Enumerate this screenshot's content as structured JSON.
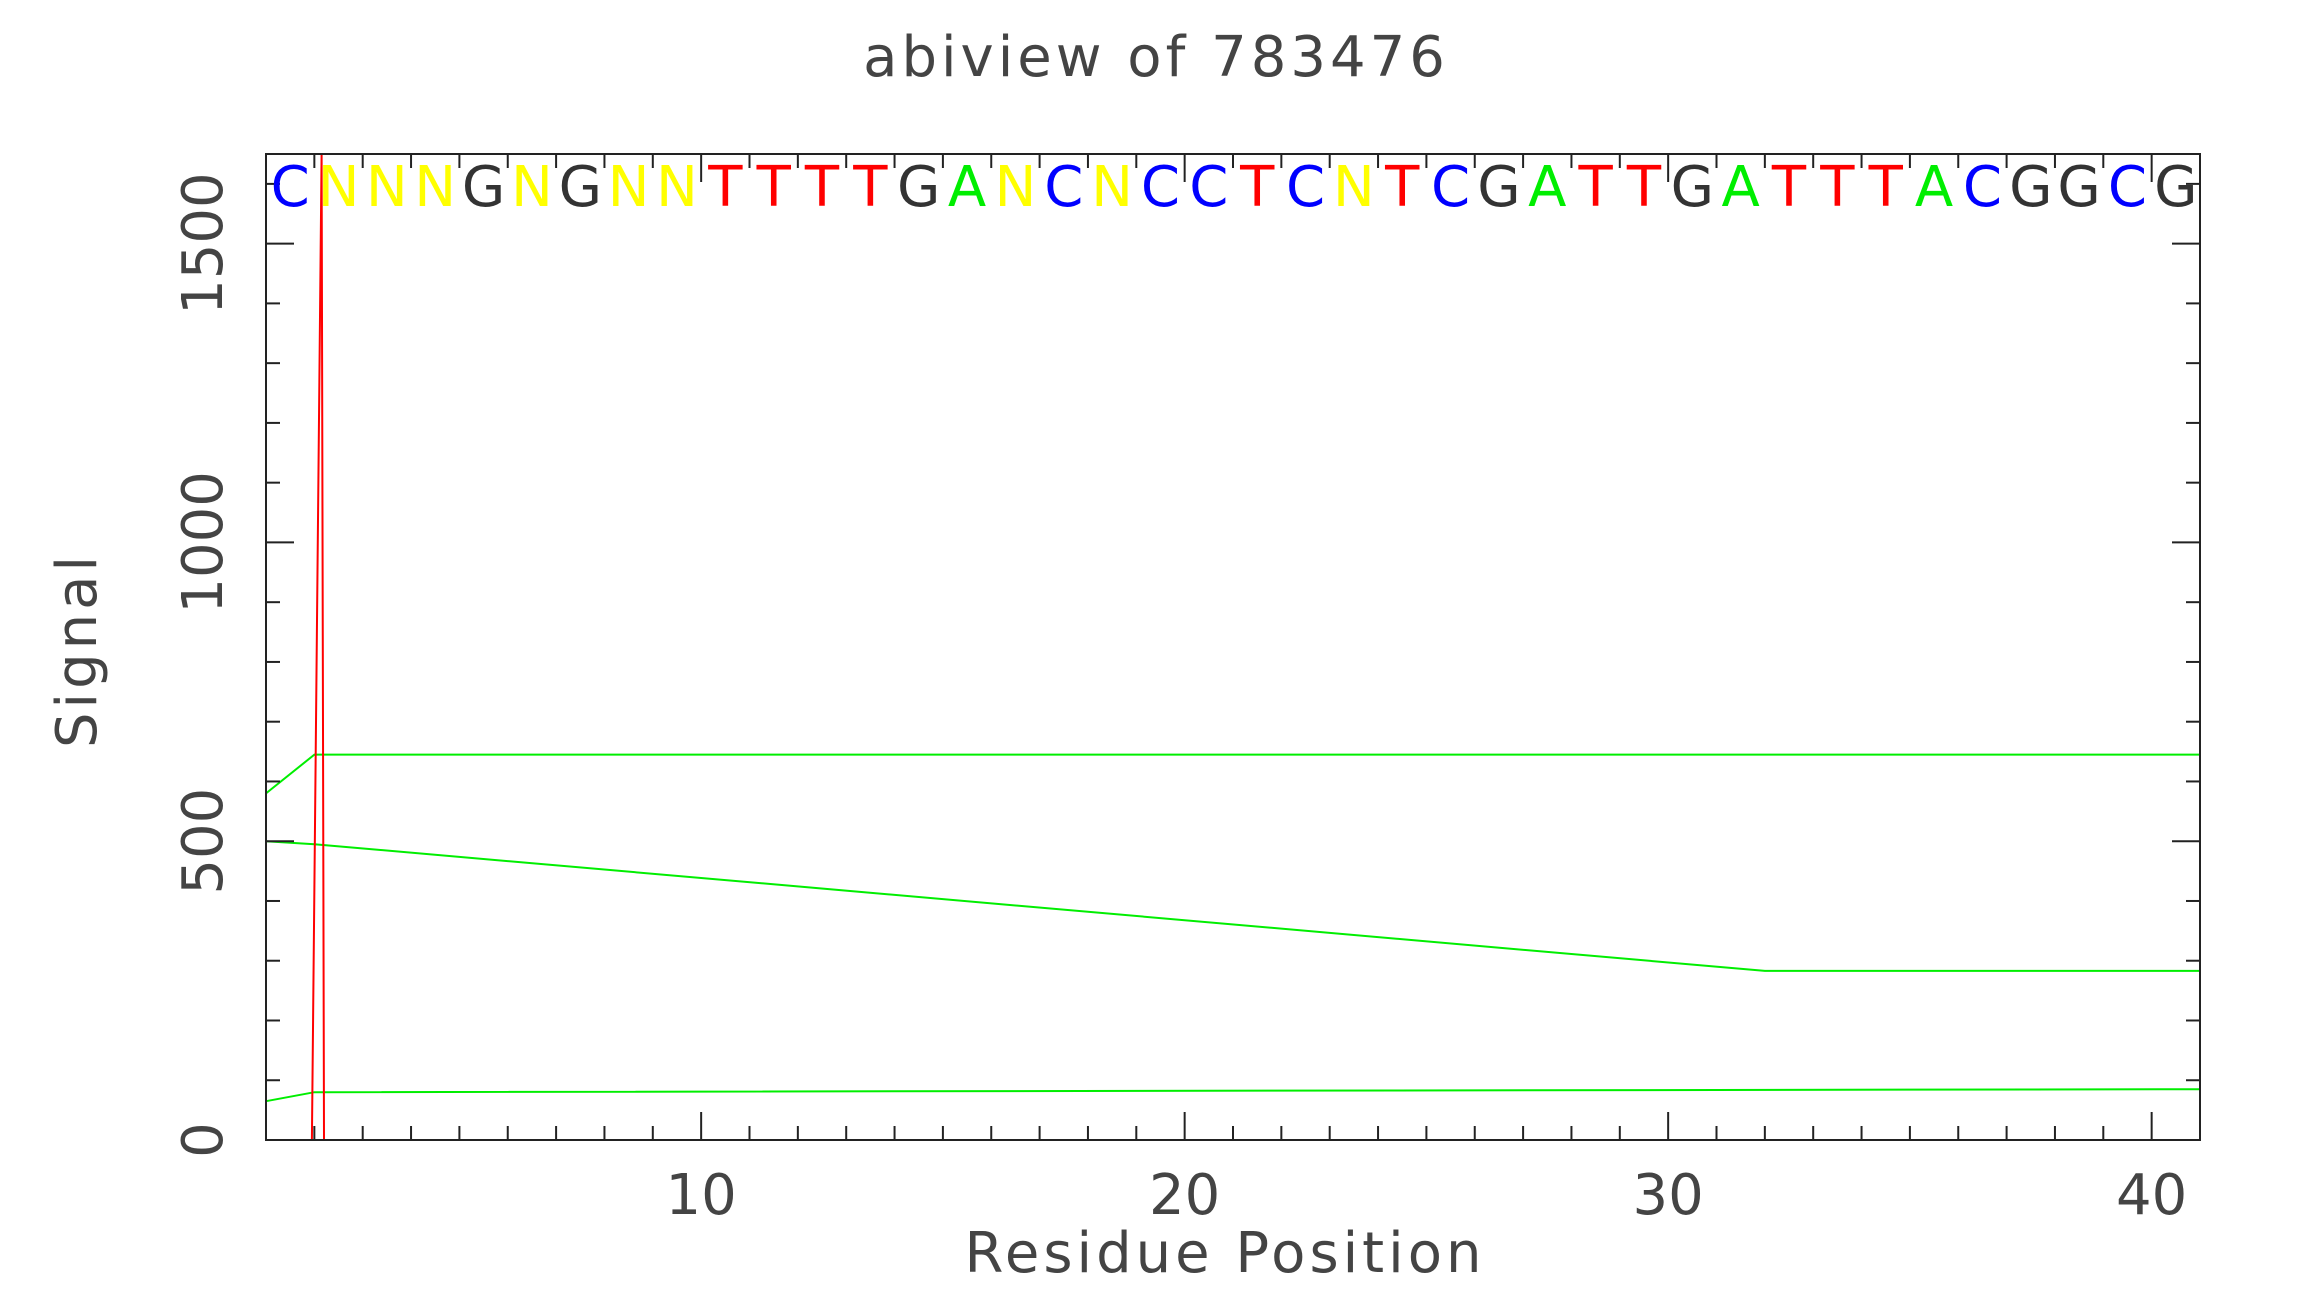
{
  "chart_data": {
    "type": "line",
    "title": "abiview of 783476",
    "xlabel": "Residue Position",
    "ylabel": "Signal",
    "xlim": [
      1,
      41
    ],
    "ylim": [
      0,
      1650
    ],
    "x_ticks": [
      10,
      20,
      30,
      40
    ],
    "y_ticks": [
      0,
      500,
      1000,
      1500
    ],
    "grid": false,
    "legend": "none",
    "sequence": [
      "C",
      "N",
      "N",
      "N",
      "G",
      "N",
      "G",
      "N",
      "N",
      "T",
      "T",
      "T",
      "T",
      "G",
      "A",
      "N",
      "C",
      "N",
      "C",
      "C",
      "T",
      "C",
      "N",
      "T",
      "C",
      "G",
      "A",
      "T",
      "T",
      "G",
      "A",
      "T",
      "T",
      "T",
      "A",
      "C",
      "G",
      "G",
      "C",
      "G"
    ],
    "base_colors": {
      "A": "#00ee00",
      "C": "#0000ff",
      "G": "#333333",
      "T": "#ff0000",
      "N": "#ffff00"
    },
    "series": [
      {
        "color": "#00ee00",
        "x": [
          1,
          2,
          41
        ],
        "y": [
          580,
          645,
          645
        ]
      },
      {
        "color": "#00ee00",
        "x": [
          1,
          2,
          32,
          41
        ],
        "y": [
          500,
          495,
          283,
          283
        ]
      },
      {
        "color": "#00ee00",
        "x": [
          1,
          2,
          41
        ],
        "y": [
          65,
          80,
          85
        ]
      },
      {
        "color": "#ff0000",
        "x": [
          1,
          1.95,
          2.15,
          2.2,
          41
        ],
        "y": [
          0,
          0,
          1650,
          0,
          0
        ]
      },
      {
        "color": "#800080",
        "x": [
          1,
          41
        ],
        "y": [
          0,
          0
        ]
      }
    ]
  }
}
